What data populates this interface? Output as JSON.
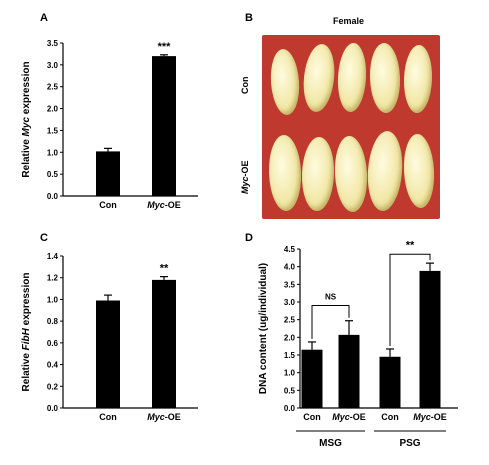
{
  "panels": {
    "a": {
      "label": "A"
    },
    "b": {
      "label": "B",
      "title": "Female",
      "row_top": "Con",
      "row_bottom_italic": "Myc",
      "row_bottom_rest": "-OE"
    },
    "c": {
      "label": "C"
    },
    "d": {
      "label": "D"
    }
  },
  "chart_data": [
    {
      "id": "A",
      "type": "bar",
      "ylabel_parts": [
        "Relative ",
        "Myc",
        " expression"
      ],
      "ylim": [
        0,
        3.5
      ],
      "yticks": [
        "0.0",
        "0.5",
        "1.0",
        "1.5",
        "2.0",
        "2.5",
        "3.0",
        "3.5"
      ],
      "categories": [
        {
          "plain": "Con",
          "italic": ""
        },
        {
          "plain": "-OE",
          "italic": "Myc"
        }
      ],
      "values": [
        1.02,
        3.2
      ],
      "errors": [
        0.07,
        0.03
      ],
      "annotations": [
        "",
        "***"
      ]
    },
    {
      "id": "C",
      "type": "bar",
      "ylabel_parts": [
        "Relative ",
        "FibH",
        " expression"
      ],
      "ylim": [
        0,
        1.4
      ],
      "yticks": [
        "0.0",
        "0.2",
        "0.4",
        "0.6",
        "0.8",
        "1.0",
        "1.2",
        "1.4"
      ],
      "categories": [
        {
          "plain": "Con",
          "italic": ""
        },
        {
          "plain": "-OE",
          "italic": "Myc"
        }
      ],
      "values": [
        0.99,
        1.18
      ],
      "errors": [
        0.05,
        0.03
      ],
      "annotations": [
        "",
        "**"
      ]
    },
    {
      "id": "D",
      "type": "bar",
      "ylabel": "DNA content (ug/individual)",
      "ylim": [
        0,
        4.5
      ],
      "yticks": [
        "0.0",
        "0.5",
        "1.0",
        "1.5",
        "2.0",
        "2.5",
        "3.0",
        "3.5",
        "4.0",
        "4.5"
      ],
      "categories": [
        {
          "plain": "Con",
          "italic": ""
        },
        {
          "plain": "-OE",
          "italic": "Myc"
        },
        {
          "plain": "Con",
          "italic": ""
        },
        {
          "plain": "-OE",
          "italic": "Myc"
        }
      ],
      "values": [
        1.65,
        2.07,
        1.45,
        3.88
      ],
      "errors": [
        0.22,
        0.4,
        0.22,
        0.22
      ],
      "groups": [
        "MSG",
        "PSG"
      ],
      "comparisons": [
        "NS",
        "**"
      ]
    }
  ]
}
